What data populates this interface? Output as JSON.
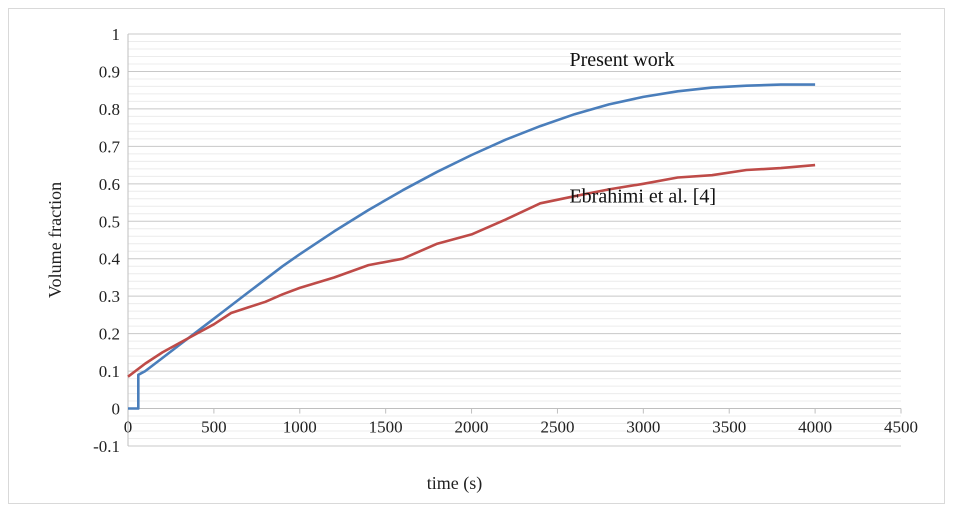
{
  "chart_data": {
    "type": "line",
    "title": "",
    "xlabel": "time (s)",
    "ylabel": "Volume fraction",
    "xlim": [
      0,
      4500
    ],
    "ylim": [
      -0.1,
      1
    ],
    "xticks": [
      0,
      500,
      1000,
      1500,
      2000,
      2500,
      3000,
      3500,
      4000,
      4500
    ],
    "yticks": [
      -0.1,
      0,
      0.1,
      0.2,
      0.3,
      0.4,
      0.5,
      0.6,
      0.7,
      0.8,
      0.9,
      1
    ],
    "ytick_labels": [
      "-0.1",
      "0",
      "0.1",
      "0.2",
      "0.3",
      "0.4",
      "0.5",
      "0.6",
      "0.7",
      "0.8",
      "0.9",
      "1"
    ],
    "xtick_labels": [
      "0",
      "500",
      "1000",
      "1500",
      "2000",
      "2500",
      "3000",
      "3500",
      "4000",
      "4500"
    ],
    "grid": true,
    "legend": "inline labels",
    "series": [
      {
        "name": "Present work",
        "color": "#4a7ebb",
        "points": [
          [
            0,
            0
          ],
          [
            60,
            0
          ],
          [
            60,
            0.09
          ],
          [
            100,
            0.1
          ],
          [
            200,
            0.135
          ],
          [
            300,
            0.17
          ],
          [
            400,
            0.205
          ],
          [
            500,
            0.24
          ],
          [
            600,
            0.275
          ],
          [
            700,
            0.31
          ],
          [
            800,
            0.345
          ],
          [
            900,
            0.38
          ],
          [
            1000,
            0.412
          ],
          [
            1200,
            0.473
          ],
          [
            1400,
            0.53
          ],
          [
            1600,
            0.583
          ],
          [
            1800,
            0.632
          ],
          [
            2000,
            0.677
          ],
          [
            2200,
            0.718
          ],
          [
            2400,
            0.754
          ],
          [
            2600,
            0.786
          ],
          [
            2800,
            0.812
          ],
          [
            3000,
            0.832
          ],
          [
            3200,
            0.847
          ],
          [
            3400,
            0.857
          ],
          [
            3600,
            0.862
          ],
          [
            3800,
            0.865
          ],
          [
            4000,
            0.865
          ]
        ]
      },
      {
        "name": "Ebrahimi et al. [4]",
        "color": "#be4b48",
        "points": [
          [
            0,
            0.085
          ],
          [
            100,
            0.12
          ],
          [
            200,
            0.15
          ],
          [
            300,
            0.175
          ],
          [
            400,
            0.2
          ],
          [
            500,
            0.225
          ],
          [
            600,
            0.255
          ],
          [
            700,
            0.27
          ],
          [
            800,
            0.285
          ],
          [
            900,
            0.305
          ],
          [
            1000,
            0.322
          ],
          [
            1200,
            0.35
          ],
          [
            1400,
            0.383
          ],
          [
            1600,
            0.4
          ],
          [
            1800,
            0.44
          ],
          [
            2000,
            0.465
          ],
          [
            2200,
            0.505
          ],
          [
            2400,
            0.548
          ],
          [
            2600,
            0.567
          ],
          [
            2800,
            0.585
          ],
          [
            3000,
            0.6
          ],
          [
            3200,
            0.617
          ],
          [
            3400,
            0.623
          ],
          [
            3600,
            0.637
          ],
          [
            3800,
            0.642
          ],
          [
            4000,
            0.65
          ]
        ]
      }
    ],
    "annotations": [
      {
        "text": "Present work",
        "x": 2570,
        "y": 0.915
      },
      {
        "text": "Ebrahimi et al. [4]",
        "x": 2570,
        "y": 0.55
      }
    ]
  }
}
